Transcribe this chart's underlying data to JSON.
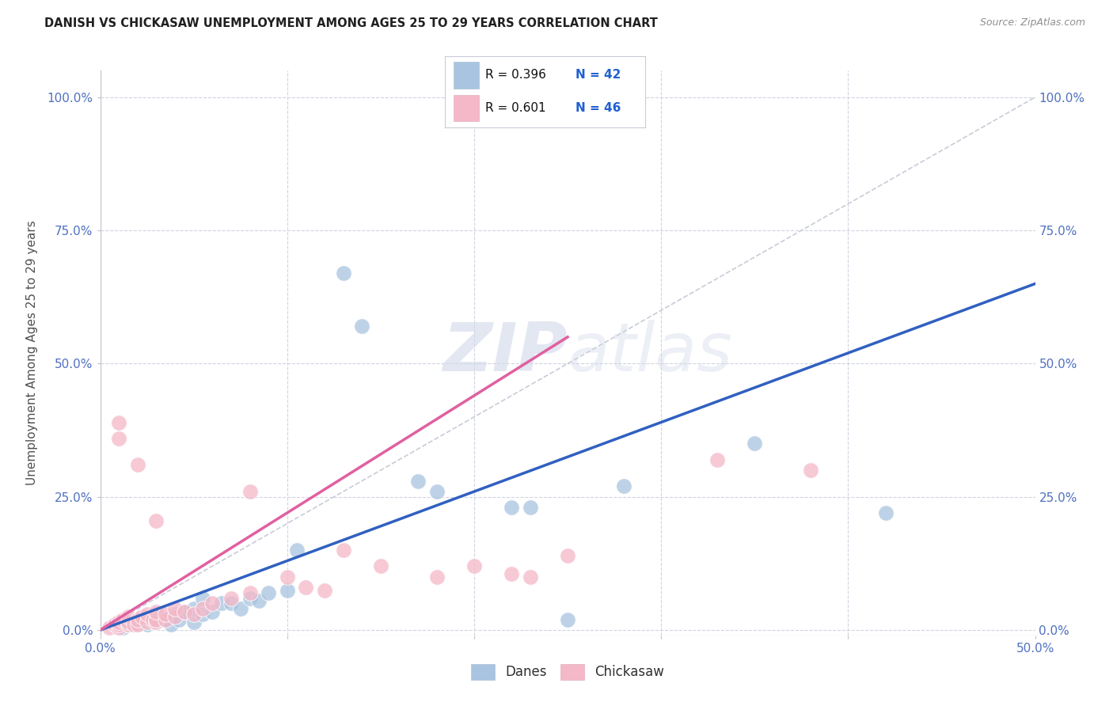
{
  "title": "DANISH VS CHICKASAW UNEMPLOYMENT AMONG AGES 25 TO 29 YEARS CORRELATION CHART",
  "source": "Source: ZipAtlas.com",
  "ylabel_label": "Unemployment Among Ages 25 to 29 years",
  "xlim": [
    0.0,
    50.0
  ],
  "ylim": [
    -1.0,
    105.0
  ],
  "danes_R": 0.396,
  "danes_N": 42,
  "chickasaw_R": 0.601,
  "chickasaw_N": 46,
  "danes_color": "#a8c4e0",
  "chickasaw_color": "#f4b8c8",
  "danes_line_color": "#3060c0",
  "chickasaw_line_color": "#e060a0",
  "diagonal_color": "#c8ccd8",
  "watermark_color": "#d0d8e8",
  "background_color": "#ffffff",
  "grid_color": "#d0d4e0",
  "ylabel_ticks": [
    0,
    25,
    50,
    75,
    100
  ],
  "xlabel_bottom_labels": [
    "0.0%",
    "50.0%"
  ],
  "xlabel_bottom_positions": [
    0.0,
    50.0
  ],
  "xlabel_tick_positions": [
    0.0,
    10.0,
    20.0,
    30.0,
    40.0,
    50.0
  ],
  "danes_scatter": [
    [
      1.0,
      1.0
    ],
    [
      1.0,
      1.5
    ],
    [
      1.2,
      0.5
    ],
    [
      1.5,
      1.0
    ],
    [
      1.8,
      1.5
    ],
    [
      2.0,
      1.0
    ],
    [
      2.0,
      2.0
    ],
    [
      2.2,
      1.5
    ],
    [
      2.5,
      1.0
    ],
    [
      2.5,
      2.0
    ],
    [
      2.8,
      1.5
    ],
    [
      3.0,
      2.0
    ],
    [
      3.0,
      3.0
    ],
    [
      3.2,
      2.5
    ],
    [
      3.5,
      2.0
    ],
    [
      3.8,
      1.0
    ],
    [
      4.0,
      3.0
    ],
    [
      4.2,
      2.0
    ],
    [
      4.5,
      3.5
    ],
    [
      5.0,
      1.5
    ],
    [
      5.0,
      4.0
    ],
    [
      5.5,
      3.0
    ],
    [
      5.5,
      6.0
    ],
    [
      6.0,
      3.5
    ],
    [
      6.5,
      5.0
    ],
    [
      7.0,
      5.0
    ],
    [
      7.5,
      4.0
    ],
    [
      8.0,
      6.0
    ],
    [
      8.5,
      5.5
    ],
    [
      9.0,
      7.0
    ],
    [
      10.0,
      7.5
    ],
    [
      10.5,
      15.0
    ],
    [
      13.0,
      67.0
    ],
    [
      14.0,
      57.0
    ],
    [
      17.0,
      28.0
    ],
    [
      18.0,
      26.0
    ],
    [
      22.0,
      23.0
    ],
    [
      23.0,
      23.0
    ],
    [
      25.0,
      2.0
    ],
    [
      28.0,
      27.0
    ],
    [
      35.0,
      35.0
    ],
    [
      42.0,
      22.0
    ]
  ],
  "chickasaw_scatter": [
    [
      0.5,
      0.5
    ],
    [
      0.8,
      1.0
    ],
    [
      1.0,
      0.5
    ],
    [
      1.0,
      1.0
    ],
    [
      1.0,
      1.5
    ],
    [
      1.2,
      2.0
    ],
    [
      1.5,
      1.0
    ],
    [
      1.5,
      1.5
    ],
    [
      1.5,
      2.5
    ],
    [
      1.8,
      1.0
    ],
    [
      2.0,
      1.0
    ],
    [
      2.0,
      2.0
    ],
    [
      2.2,
      2.5
    ],
    [
      2.5,
      1.5
    ],
    [
      2.5,
      3.0
    ],
    [
      2.8,
      2.0
    ],
    [
      3.0,
      1.5
    ],
    [
      3.0,
      2.0
    ],
    [
      3.0,
      3.5
    ],
    [
      3.5,
      2.0
    ],
    [
      3.5,
      3.0
    ],
    [
      4.0,
      2.5
    ],
    [
      4.0,
      4.0
    ],
    [
      4.5,
      3.5
    ],
    [
      5.0,
      3.0
    ],
    [
      5.5,
      4.0
    ],
    [
      6.0,
      5.0
    ],
    [
      7.0,
      6.0
    ],
    [
      8.0,
      7.0
    ],
    [
      1.0,
      36.0
    ],
    [
      1.0,
      39.0
    ],
    [
      2.0,
      31.0
    ],
    [
      3.0,
      20.5
    ],
    [
      8.0,
      26.0
    ],
    [
      10.0,
      10.0
    ],
    [
      11.0,
      8.0
    ],
    [
      12.0,
      7.5
    ],
    [
      13.0,
      15.0
    ],
    [
      15.0,
      12.0
    ],
    [
      18.0,
      10.0
    ],
    [
      20.0,
      12.0
    ],
    [
      22.0,
      10.5
    ],
    [
      23.0,
      10.0
    ],
    [
      25.0,
      14.0
    ],
    [
      33.0,
      32.0
    ],
    [
      38.0,
      30.0
    ]
  ],
  "danes_line": [
    [
      0.0,
      0.0
    ],
    [
      50.0,
      65.0
    ]
  ],
  "chickasaw_line": [
    [
      0.0,
      0.0
    ],
    [
      25.0,
      55.0
    ]
  ],
  "diagonal_line": [
    [
      0.0,
      0.0
    ],
    [
      50.0,
      100.0
    ]
  ]
}
